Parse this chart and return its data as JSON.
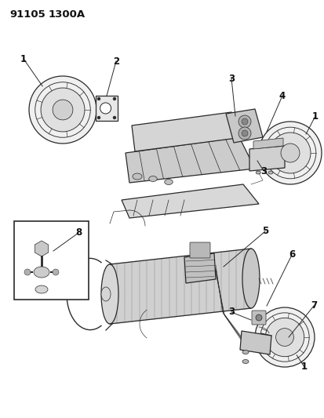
{
  "title_code": "91105",
  "title_sub": "1300A",
  "bg": "#ffffff",
  "lc": "#2a2a2a",
  "tc": "#111111",
  "figsize": [
    4.14,
    5.33
  ],
  "dpi": 100
}
